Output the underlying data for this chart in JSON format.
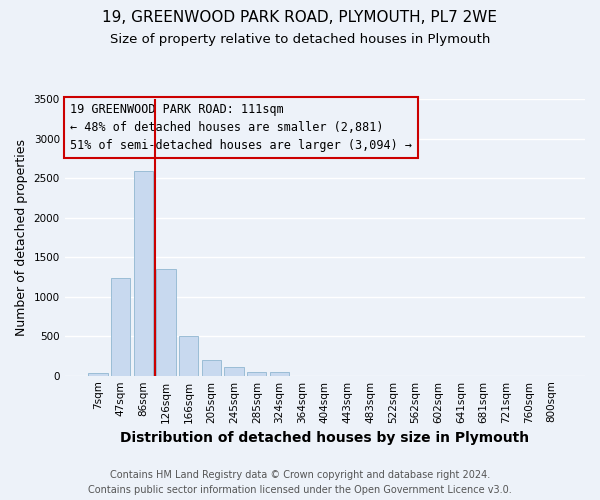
{
  "title_line1": "19, GREENWOOD PARK ROAD, PLYMOUTH, PL7 2WE",
  "title_line2": "Size of property relative to detached houses in Plymouth",
  "xlabel": "Distribution of detached houses by size in Plymouth",
  "ylabel": "Number of detached properties",
  "bar_labels": [
    "7sqm",
    "47sqm",
    "86sqm",
    "126sqm",
    "166sqm",
    "205sqm",
    "245sqm",
    "285sqm",
    "324sqm",
    "364sqm",
    "404sqm",
    "443sqm",
    "483sqm",
    "522sqm",
    "562sqm",
    "602sqm",
    "641sqm",
    "681sqm",
    "721sqm",
    "760sqm",
    "800sqm"
  ],
  "bar_values": [
    40,
    1230,
    2590,
    1350,
    500,
    200,
    110,
    50,
    50,
    0,
    0,
    0,
    0,
    0,
    0,
    0,
    0,
    0,
    0,
    0,
    0
  ],
  "bar_color": "#c8d9ef",
  "bar_edge_color": "#9bbdd6",
  "vline_color": "#cc0000",
  "vline_pos": 2.5,
  "ylim": [
    0,
    3500
  ],
  "yticks": [
    0,
    500,
    1000,
    1500,
    2000,
    2500,
    3000,
    3500
  ],
  "annotation_line1": "19 GREENWOOD PARK ROAD: 111sqm",
  "annotation_line2": "← 48% of detached houses are smaller (2,881)",
  "annotation_line3": "51% of semi-detached houses are larger (3,094) →",
  "annotation_box_color": "#cc0000",
  "footer_line1": "Contains HM Land Registry data © Crown copyright and database right 2024.",
  "footer_line2": "Contains public sector information licensed under the Open Government Licence v3.0.",
  "bg_color": "#edf2f9",
  "grid_color": "#ffffff",
  "title_fontsize": 11,
  "subtitle_fontsize": 9.5,
  "xlabel_fontsize": 10,
  "ylabel_fontsize": 9,
  "tick_fontsize": 7.5,
  "footer_fontsize": 7,
  "annot_fontsize": 8.5
}
